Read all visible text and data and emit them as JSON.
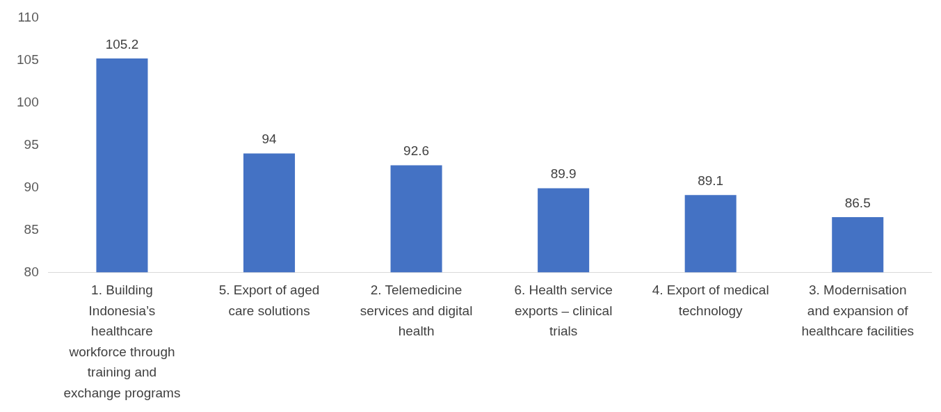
{
  "chart_data": {
    "type": "bar",
    "categories": [
      "1. Building Indonesia’s healthcare workforce through training and exchange programs",
      "5. Export of aged care solutions",
      "2. Telemedicine services and digital health",
      "6. Health service exports – clinical trials",
      "4. Export of medical technology",
      "3. Modernisation and expansion of healthcare facilities"
    ],
    "values": [
      105.2,
      94,
      92.6,
      89.9,
      89.1,
      86.5
    ],
    "color": "#4472c4",
    "ylim": [
      80,
      110
    ],
    "yticks": [
      80,
      85,
      90,
      95,
      100,
      105,
      110
    ],
    "grid": false,
    "data_labels": true,
    "legend": false
  }
}
